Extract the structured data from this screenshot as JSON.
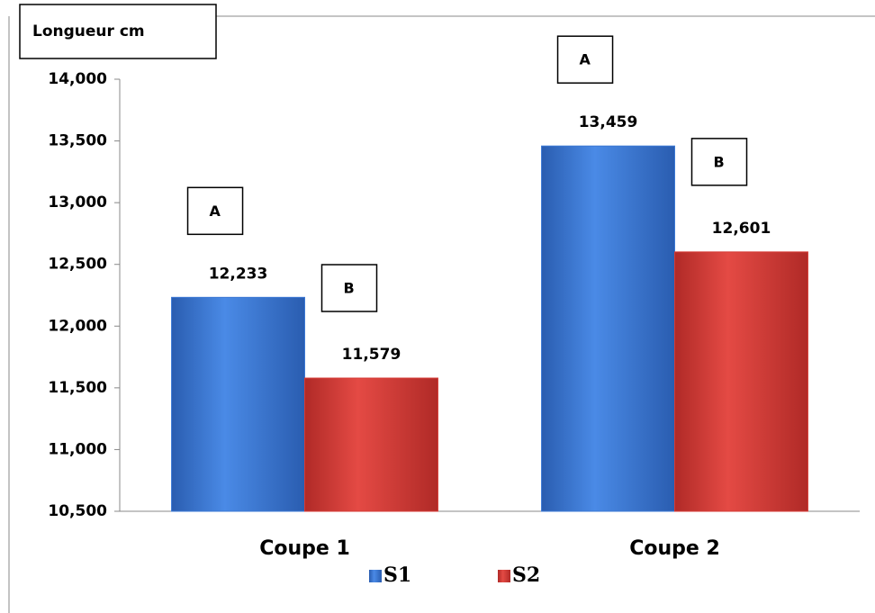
{
  "chart_data": {
    "type": "bar",
    "y_label": "Longueur cm",
    "categories": [
      "Coupe 1",
      "Coupe 2"
    ],
    "series": [
      {
        "name": "S1",
        "color": "#3b78d4",
        "values": [
          12233,
          13459
        ],
        "value_labels": [
          "12,233",
          "13,459"
        ],
        "annotations": [
          "A",
          "A"
        ]
      },
      {
        "name": "S2",
        "color": "#d63a35",
        "values": [
          11579,
          12601
        ],
        "value_labels": [
          "11,579",
          "12,601"
        ],
        "annotations": [
          "B",
          "B"
        ]
      }
    ],
    "ylim": [
      10500,
      14000
    ],
    "yticks": [
      {
        "value": 10500,
        "label": "10,500"
      },
      {
        "value": 11000,
        "label": "11,000"
      },
      {
        "value": 11500,
        "label": "11,500"
      },
      {
        "value": 12000,
        "label": "12,000"
      },
      {
        "value": 12500,
        "label": "12,500"
      },
      {
        "value": 13000,
        "label": "13,000"
      },
      {
        "value": 13500,
        "label": "13,500"
      },
      {
        "value": 14000,
        "label": "14,000"
      }
    ],
    "legend": "bottom"
  }
}
